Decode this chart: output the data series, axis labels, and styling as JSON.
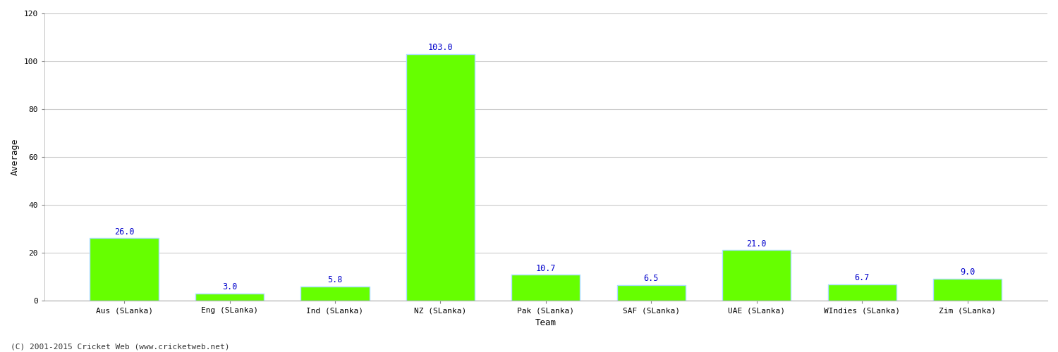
{
  "categories": [
    "Aus (SLanka)",
    "Eng (SLanka)",
    "Ind (SLanka)",
    "NZ (SLanka)",
    "Pak (SLanka)",
    "SAF (SLanka)",
    "UAE (SLanka)",
    "WIndies (SLanka)",
    "Zim (SLanka)"
  ],
  "values": [
    26.0,
    3.0,
    5.8,
    103.0,
    10.7,
    6.5,
    21.0,
    6.7,
    9.0
  ],
  "bar_color": "#66ff00",
  "bar_edge_color": "#aaddff",
  "label_color": "#0000cc",
  "xlabel": "Team",
  "ylabel": "Average",
  "ylim": [
    0,
    120
  ],
  "yticks": [
    0,
    20,
    40,
    60,
    80,
    100,
    120
  ],
  "grid_color": "#cccccc",
  "background_color": "#ffffff",
  "annotation_fontsize": 8.5,
  "axis_label_fontsize": 9,
  "tick_label_fontsize": 8,
  "footer_text": "(C) 2001-2015 Cricket Web (www.cricketweb.net)",
  "footer_fontsize": 8,
  "figsize": [
    15.0,
    5.0
  ],
  "dpi": 100
}
